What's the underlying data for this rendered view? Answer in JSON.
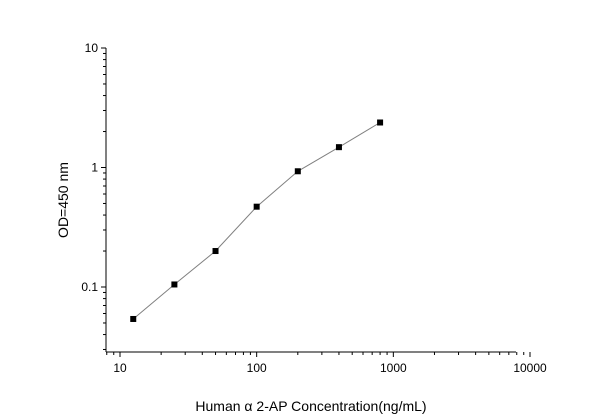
{
  "chart_data": {
    "type": "line",
    "xlabel": "Human α 2-AP Concentration(ng/mL)",
    "ylabel": "OD=450 nm",
    "x_scale": "log",
    "y_scale": "log",
    "xlim": [
      10,
      10000
    ],
    "ylim": [
      0.1,
      10
    ],
    "x_ticks": [
      "10",
      "100",
      "1000",
      "10000"
    ],
    "y_ticks": [
      "0.1",
      "1",
      "10"
    ],
    "grid": false,
    "series": [
      {
        "x": [
          12.5,
          25,
          50,
          100,
          200,
          400,
          800
        ],
        "y": [
          0.054,
          0.105,
          0.2,
          0.47,
          0.93,
          1.48,
          2.38
        ]
      }
    ],
    "colors": {
      "line": "#808080",
      "marker": "#000000",
      "axis": "#000000"
    }
  }
}
